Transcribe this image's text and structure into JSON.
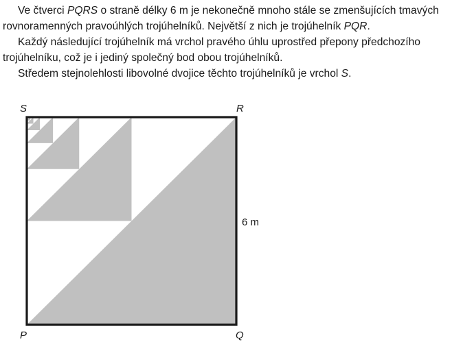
{
  "problem": {
    "p1": {
      "t1": "Ve čtverci ",
      "name_square": "PQRS",
      "t2": " o straně délky 6 m je nekonečně mnoho stále se zmenšujících tmavých rovnoramenných pravoúhlých trojúhelníků. Největší z nich je trojúhelník ",
      "name_triangle": "PQR",
      "t3": "."
    },
    "p2": "Každý následující trojúhelník má vrchol pravého úhlu uprostřed přepony předchozího trojúhelníku, což je i jediný společný bod obou trojúhelníků.",
    "p3": {
      "t1": "Středem stejnolehlosti libovolné dvojice těchto trojúhelníků je vrchol ",
      "name_vertex": "S",
      "t2": "."
    }
  },
  "figure": {
    "labels": {
      "S": "S",
      "R": "R",
      "P": "P",
      "Q": "Q",
      "side": "6 m"
    },
    "side_length_m": 6,
    "scale_ratio": 0.5,
    "triangles_drawn": 7,
    "colors": {
      "fill": "#c0c0c0",
      "stroke": "#1a1a1a",
      "background": "#ffffff"
    }
  }
}
